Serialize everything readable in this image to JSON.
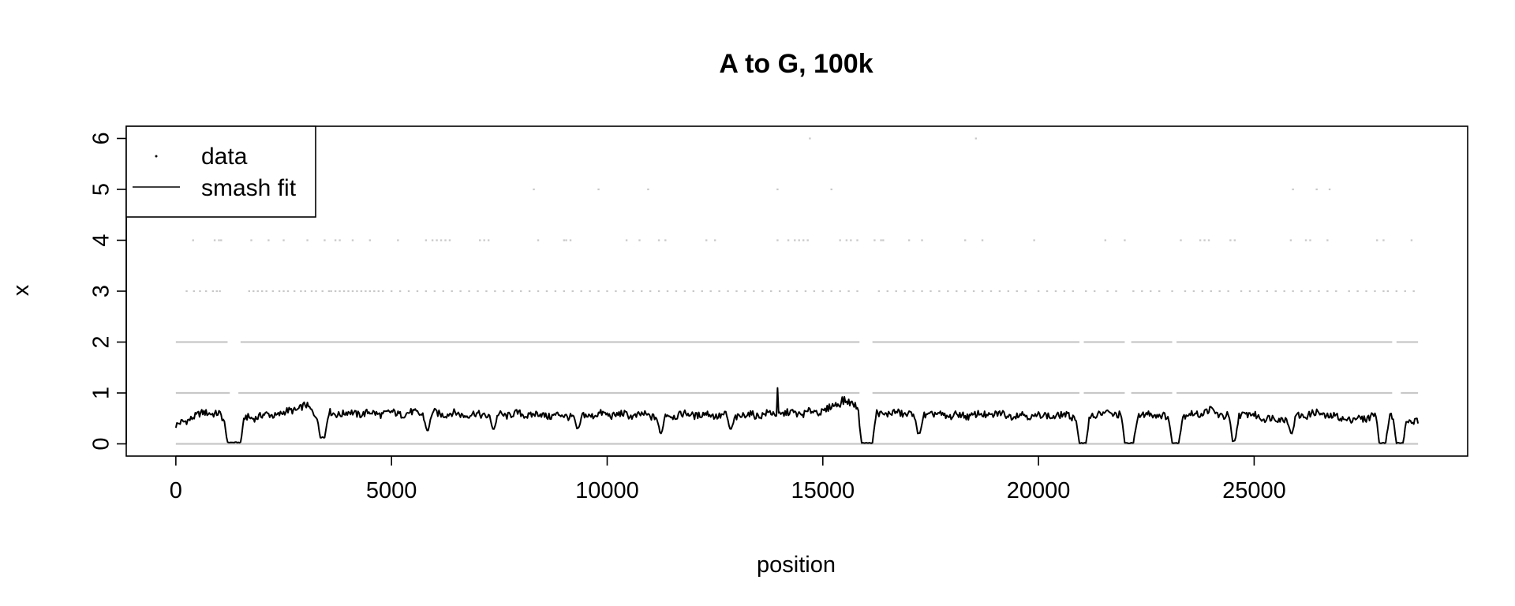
{
  "chart_data": {
    "type": "scatter",
    "title": "A to G, 100k",
    "xlabel": "position",
    "ylabel": "x",
    "xlim": [
      -1150,
      29950
    ],
    "ylim": [
      -0.24,
      6.24
    ],
    "x_ticks": [
      0,
      5000,
      10000,
      15000,
      20000,
      25000
    ],
    "y_ticks": [
      0,
      1,
      2,
      3,
      4,
      5,
      6
    ],
    "grid": false,
    "legend": {
      "position": "top-left",
      "entries": [
        {
          "label": "data",
          "kind": "point"
        },
        {
          "label": "smash fit",
          "kind": "line"
        }
      ]
    },
    "colors": {
      "data": "#c8c8c8",
      "fit": "#000000"
    },
    "series": [
      {
        "name": "data",
        "kind": "points",
        "level_ranges": [
          {
            "y": 0,
            "ranges": [
              [
                0,
                28800
              ]
            ]
          },
          {
            "y": 1,
            "ranges": [
              [
                0,
                1250
              ],
              [
                1450,
                15850
              ],
              [
                16150,
                20950
              ],
              [
                21050,
                22000
              ],
              [
                22150,
                23100
              ],
              [
                23200,
                28200
              ],
              [
                28400,
                28800
              ]
            ]
          },
          {
            "y": 2,
            "ranges": [
              [
                0,
                1200
              ],
              [
                1500,
                15850
              ],
              [
                16150,
                20950
              ],
              [
                21050,
                22000
              ],
              [
                22150,
                23100
              ],
              [
                23200,
                28200
              ],
              [
                28300,
                28800
              ]
            ]
          }
        ],
        "points": [
          {
            "y": 3,
            "x": [
              250,
              420,
              560,
              700,
              860,
              950,
              1020,
              1700,
              1800,
              1900,
              2000,
              2100,
              2250,
              2400,
              2500,
              2600,
              2750,
              2900,
              3000,
              3150,
              3250,
              3400,
              3550,
              3600,
              3700,
              3800,
              3900,
              4000,
              4100,
              4200,
              4300,
              4400,
              4500,
              4600,
              4700,
              4800,
              5000,
              5200,
              5400,
              5600,
              5800,
              6000,
              6200,
              6400,
              6600,
              6800,
              7000,
              7200,
              7400,
              7600,
              7800,
              8000,
              8200,
              8400,
              8600,
              8800,
              9000,
              9200,
              9400,
              9600,
              9800,
              10000,
              10200,
              10400,
              10600,
              10800,
              11000,
              11200,
              11400,
              11600,
              11800,
              12000,
              12200,
              12400,
              12600,
              12800,
              13000,
              13200,
              13400,
              13600,
              13800,
              14000,
              14200,
              14400,
              14600,
              14800,
              15000,
              15200,
              15400,
              15600,
              15800,
              16300,
              16500,
              16700,
              16900,
              17100,
              17300,
              17500,
              17700,
              17900,
              18100,
              18300,
              18500,
              18700,
              18900,
              19100,
              19300,
              19500,
              19700,
              20000,
              20200,
              20400,
              20600,
              20800,
              21100,
              21300,
              21600,
              21800,
              22200,
              22400,
              22600,
              22800,
              23100,
              23400,
              23600,
              23800,
              24000,
              24200,
              24400,
              24700,
              24900,
              25100,
              25300,
              25500,
              25700,
              25900,
              26100,
              26300,
              26500,
              26700,
              26900,
              27200,
              27400,
              27600,
              27800,
              28000,
              28100,
              28300,
              28500,
              28700
            ]
          },
          {
            "y": 4,
            "x": [
              400,
              900,
              1000,
              1050,
              1750,
              2150,
              2500,
              3050,
              3450,
              3700,
              3800,
              4100,
              4500,
              5150,
              5800,
              5950,
              6050,
              6150,
              6250,
              6350,
              7050,
              7150,
              7250,
              8400,
              9000,
              9050,
              9150,
              10450,
              10750,
              11200,
              11350,
              12300,
              12500,
              13950,
              14200,
              14350,
              14450,
              14550,
              14650,
              15400,
              15550,
              15650,
              15800,
              16200,
              16350,
              16400,
              17000,
              17300,
              18300,
              18700,
              19900,
              21550,
              22000,
              23300,
              23750,
              23850,
              23950,
              24450,
              24550,
              25850,
              26200,
              26300,
              26700,
              27850,
              28000,
              28650
            ]
          },
          {
            "y": 5,
            "x": [
              8300,
              9800,
              10950,
              13950,
              15200,
              25900,
              26450,
              26750
            ]
          },
          {
            "y": 6,
            "x": [
              14700,
              18550
            ]
          }
        ]
      },
      {
        "name": "smash fit",
        "kind": "line",
        "baseline": [
          [
            0,
            0.36
          ],
          [
            200,
            0.42
          ],
          [
            400,
            0.55
          ],
          [
            600,
            0.58
          ],
          [
            800,
            0.62
          ],
          [
            1000,
            0.6
          ],
          [
            1100,
            0.45
          ],
          [
            2000,
            0.55
          ],
          [
            2500,
            0.6
          ],
          [
            3000,
            0.75
          ],
          [
            3200,
            0.6
          ],
          [
            4000,
            0.6
          ],
          [
            5000,
            0.6
          ],
          [
            6000,
            0.6
          ],
          [
            7000,
            0.57
          ],
          [
            8000,
            0.58
          ],
          [
            9000,
            0.55
          ],
          [
            10000,
            0.58
          ],
          [
            11000,
            0.55
          ],
          [
            12000,
            0.58
          ],
          [
            13000,
            0.55
          ],
          [
            14000,
            0.6
          ],
          [
            14500,
            0.6
          ],
          [
            15000,
            0.65
          ],
          [
            15300,
            0.75
          ],
          [
            15500,
            0.88
          ],
          [
            15700,
            0.75
          ],
          [
            16200,
            0.6
          ],
          [
            17000,
            0.6
          ],
          [
            18000,
            0.55
          ],
          [
            19000,
            0.58
          ],
          [
            20000,
            0.55
          ],
          [
            20800,
            0.55
          ],
          [
            21200,
            0.58
          ],
          [
            22000,
            0.6
          ],
          [
            22400,
            0.55
          ],
          [
            22800,
            0.6
          ],
          [
            23000,
            0.5
          ],
          [
            23400,
            0.55
          ],
          [
            24000,
            0.65
          ],
          [
            24300,
            0.55
          ],
          [
            24700,
            0.6
          ],
          [
            25000,
            0.55
          ],
          [
            25500,
            0.48
          ],
          [
            26000,
            0.55
          ],
          [
            26500,
            0.6
          ],
          [
            27000,
            0.5
          ],
          [
            27500,
            0.48
          ],
          [
            27800,
            0.6
          ],
          [
            28000,
            0.7
          ],
          [
            28200,
            0.55
          ],
          [
            28500,
            0.5
          ],
          [
            28800,
            0.42
          ]
        ],
        "dips": [
          {
            "start": 1200,
            "end": 1500,
            "floor": 0.02
          },
          {
            "start": 3350,
            "end": 3450,
            "floor": 0.12
          },
          {
            "start": 5820,
            "end": 5850,
            "floor": 0.25
          },
          {
            "start": 7350,
            "end": 7380,
            "floor": 0.28
          },
          {
            "start": 9300,
            "end": 9340,
            "floor": 0.3
          },
          {
            "start": 11230,
            "end": 11260,
            "floor": 0.2
          },
          {
            "start": 12850,
            "end": 12880,
            "floor": 0.28
          },
          {
            "start": 15900,
            "end": 16150,
            "floor": 0.01
          },
          {
            "start": 17200,
            "end": 17250,
            "floor": 0.2
          },
          {
            "start": 20950,
            "end": 21100,
            "floor": 0.01
          },
          {
            "start": 22000,
            "end": 22200,
            "floor": 0.01
          },
          {
            "start": 23100,
            "end": 23250,
            "floor": 0.01
          },
          {
            "start": 24500,
            "end": 24560,
            "floor": 0.05
          },
          {
            "start": 25850,
            "end": 25880,
            "floor": 0.2
          },
          {
            "start": 27900,
            "end": 28050,
            "floor": 0.01
          },
          {
            "start": 28300,
            "end": 28450,
            "floor": 0.01
          }
        ],
        "spikes": [
          {
            "x": 13950,
            "y": 1.1
          },
          {
            "x": 15450,
            "y": 0.92
          }
        ]
      }
    ]
  }
}
